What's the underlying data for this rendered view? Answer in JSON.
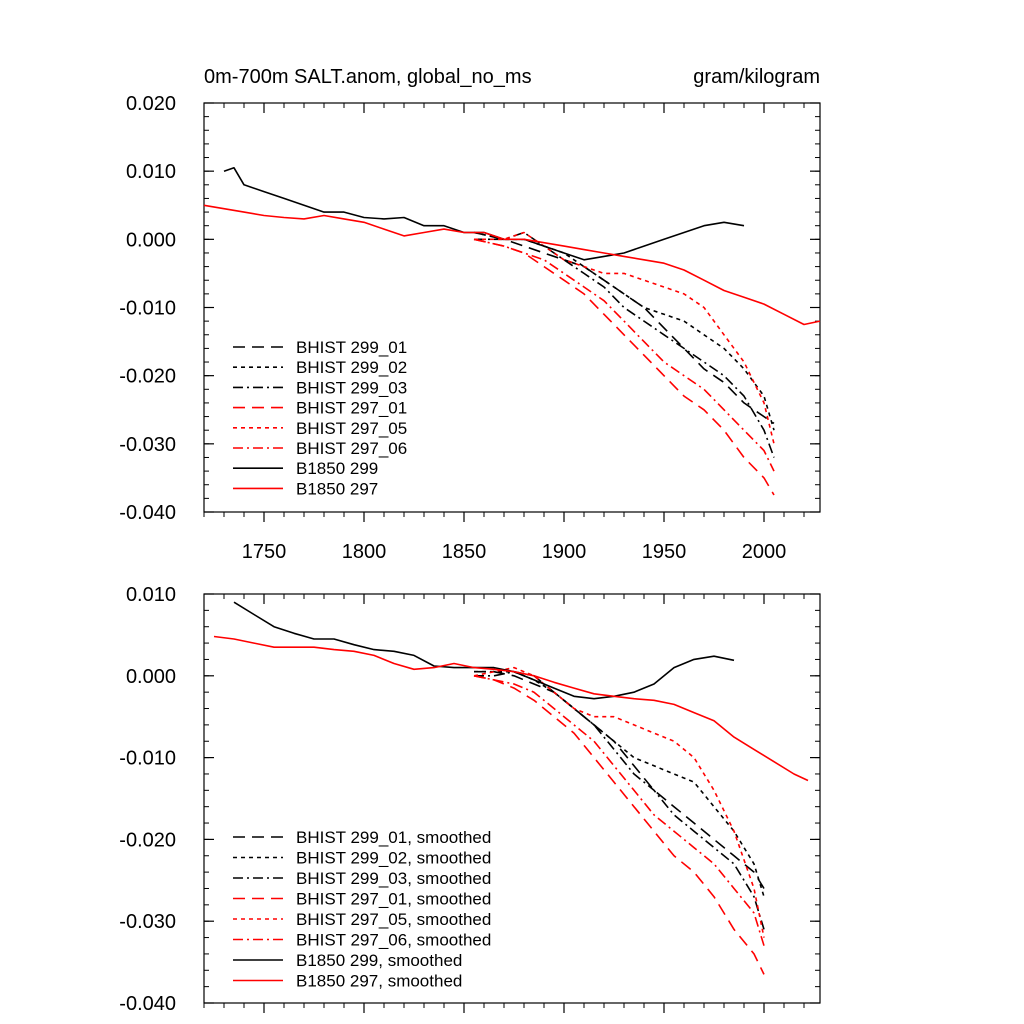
{
  "chart_data": [
    {
      "type": "line",
      "title": "0m-700m SALT.anom, global_no_ms",
      "units": "gram/kilogram",
      "xlim": [
        1720,
        2028
      ],
      "ylim": [
        -0.04,
        0.02
      ],
      "xticks": [
        1750,
        1800,
        1850,
        1900,
        1950,
        2000
      ],
      "xtick_labels": [
        "1750",
        "1800",
        "1850",
        "1900",
        "1950",
        "2000"
      ],
      "yticks": [
        0.02,
        0.01,
        0.0,
        -0.01,
        -0.02,
        -0.03,
        -0.04
      ],
      "ytick_labels": [
        "0.020",
        "0.010",
        "0.000",
        "-0.010",
        "-0.020",
        "-0.030",
        "-0.040"
      ],
      "series": [
        {
          "name": "BHIST 299_01",
          "color": "#000000",
          "dash": "long-dash",
          "x": [
            1855,
            1870,
            1880,
            1890,
            1900,
            1910,
            1920,
            1930,
            1940,
            1950,
            1960,
            1970,
            1980,
            1990,
            2000,
            2005
          ],
          "y": [
            0.001,
            0.0,
            -0.001,
            -0.002,
            -0.003,
            -0.004,
            -0.006,
            -0.008,
            -0.01,
            -0.013,
            -0.016,
            -0.019,
            -0.021,
            -0.024,
            -0.026,
            -0.027
          ]
        },
        {
          "name": "BHIST 299_02",
          "color": "#000000",
          "dash": "short-dash",
          "x": [
            1855,
            1870,
            1880,
            1890,
            1900,
            1910,
            1920,
            1930,
            1940,
            1950,
            1960,
            1970,
            1980,
            1990,
            2000,
            2005
          ],
          "y": [
            0.001,
            0.0,
            0.0,
            -0.001,
            -0.002,
            -0.004,
            -0.006,
            -0.008,
            -0.01,
            -0.011,
            -0.012,
            -0.014,
            -0.016,
            -0.019,
            -0.023,
            -0.028
          ]
        },
        {
          "name": "BHIST 299_03",
          "color": "#000000",
          "dash": "dash-dot",
          "x": [
            1855,
            1870,
            1880,
            1890,
            1900,
            1910,
            1920,
            1930,
            1940,
            1950,
            1960,
            1970,
            1980,
            1990,
            2000,
            2005
          ],
          "y": [
            0.0,
            0.0,
            0.001,
            -0.001,
            -0.003,
            -0.005,
            -0.007,
            -0.01,
            -0.012,
            -0.014,
            -0.016,
            -0.018,
            -0.02,
            -0.023,
            -0.028,
            -0.032
          ]
        },
        {
          "name": "BHIST 297_01",
          "color": "#ff0000",
          "dash": "long-dash",
          "x": [
            1855,
            1870,
            1880,
            1890,
            1900,
            1910,
            1920,
            1930,
            1940,
            1950,
            1960,
            1970,
            1980,
            1990,
            2000,
            2005
          ],
          "y": [
            0.0,
            -0.001,
            -0.002,
            -0.004,
            -0.006,
            -0.008,
            -0.011,
            -0.014,
            -0.017,
            -0.02,
            -0.023,
            -0.025,
            -0.028,
            -0.032,
            -0.035,
            -0.0375
          ]
        },
        {
          "name": "BHIST 297_05",
          "color": "#ff0000",
          "dash": "short-dash",
          "x": [
            1855,
            1870,
            1880,
            1890,
            1900,
            1910,
            1920,
            1930,
            1940,
            1950,
            1960,
            1970,
            1980,
            1990,
            2000,
            2005
          ],
          "y": [
            0.0,
            0.0,
            0.001,
            -0.001,
            -0.003,
            -0.004,
            -0.005,
            -0.005,
            -0.006,
            -0.007,
            -0.008,
            -0.01,
            -0.014,
            -0.018,
            -0.024,
            -0.03
          ]
        },
        {
          "name": "BHIST 297_06",
          "color": "#ff0000",
          "dash": "dash-dot",
          "x": [
            1855,
            1870,
            1880,
            1890,
            1900,
            1910,
            1920,
            1930,
            1940,
            1950,
            1960,
            1970,
            1980,
            1990,
            2000,
            2005
          ],
          "y": [
            0.0,
            -0.001,
            -0.002,
            -0.003,
            -0.005,
            -0.007,
            -0.009,
            -0.012,
            -0.015,
            -0.018,
            -0.02,
            -0.022,
            -0.025,
            -0.028,
            -0.031,
            -0.034
          ]
        },
        {
          "name": "B1850 299",
          "color": "#000000",
          "dash": "solid",
          "x": [
            1730,
            1735,
            1740,
            1750,
            1760,
            1770,
            1780,
            1790,
            1800,
            1810,
            1820,
            1830,
            1840,
            1850,
            1860,
            1870,
            1880,
            1890,
            1900,
            1910,
            1920,
            1930,
            1940,
            1950,
            1960,
            1970,
            1980,
            1990
          ],
          "y": [
            0.01,
            0.0105,
            0.008,
            0.007,
            0.006,
            0.005,
            0.004,
            0.004,
            0.0032,
            0.003,
            0.0032,
            0.002,
            0.002,
            0.001,
            0.001,
            0.0,
            0.0,
            -0.001,
            -0.002,
            -0.003,
            -0.0025,
            -0.002,
            -0.001,
            0.0,
            0.001,
            0.002,
            0.0025,
            0.002
          ]
        },
        {
          "name": "B1850 297",
          "color": "#ff0000",
          "dash": "solid",
          "x": [
            1720,
            1730,
            1740,
            1750,
            1760,
            1770,
            1780,
            1790,
            1800,
            1810,
            1820,
            1830,
            1840,
            1850,
            1860,
            1870,
            1880,
            1890,
            1900,
            1910,
            1920,
            1930,
            1940,
            1950,
            1960,
            1970,
            1980,
            1990,
            2000,
            2010,
            2020,
            2028
          ],
          "y": [
            0.005,
            0.0045,
            0.004,
            0.0035,
            0.0032,
            0.003,
            0.0035,
            0.003,
            0.0025,
            0.0015,
            0.0005,
            0.001,
            0.0015,
            0.001,
            0.001,
            0.0,
            0.0,
            -0.0005,
            -0.001,
            -0.0015,
            -0.002,
            -0.0025,
            -0.003,
            -0.0035,
            -0.0045,
            -0.006,
            -0.0075,
            -0.0085,
            -0.0095,
            -0.011,
            -0.0125,
            -0.012
          ]
        }
      ]
    },
    {
      "type": "line",
      "title": "",
      "xlim": [
        1720,
        2028
      ],
      "ylim": [
        -0.04,
        0.01
      ],
      "xticks": [
        1750,
        1800,
        1850,
        1900,
        1950,
        2000
      ],
      "xtick_labels": [],
      "yticks": [
        0.01,
        0.0,
        -0.01,
        -0.02,
        -0.03,
        -0.04
      ],
      "ytick_labels": [
        "0.010",
        "0.000",
        "-0.010",
        "-0.020",
        "-0.030",
        "-0.040"
      ],
      "series": [
        {
          "name": "BHIST 299_01, smoothed",
          "color": "#000000",
          "dash": "long-dash",
          "x": [
            1855,
            1865,
            1875,
            1885,
            1895,
            1905,
            1915,
            1925,
            1935,
            1945,
            1955,
            1965,
            1975,
            1985,
            1995,
            2000
          ],
          "y": [
            0.0005,
            0.0005,
            0.0,
            -0.001,
            -0.002,
            -0.004,
            -0.006,
            -0.008,
            -0.011,
            -0.014,
            -0.016,
            -0.018,
            -0.02,
            -0.022,
            -0.024,
            -0.026
          ]
        },
        {
          "name": "BHIST 299_02, smoothed",
          "color": "#000000",
          "dash": "short-dash",
          "x": [
            1855,
            1865,
            1875,
            1885,
            1895,
            1905,
            1915,
            1925,
            1935,
            1945,
            1955,
            1965,
            1975,
            1985,
            1995,
            2000
          ],
          "y": [
            0.0005,
            0.0005,
            0.0005,
            -0.0005,
            -0.002,
            -0.004,
            -0.006,
            -0.008,
            -0.01,
            -0.011,
            -0.012,
            -0.013,
            -0.016,
            -0.019,
            -0.023,
            -0.027
          ]
        },
        {
          "name": "BHIST 299_03, smoothed",
          "color": "#000000",
          "dash": "dash-dot",
          "x": [
            1855,
            1865,
            1875,
            1885,
            1895,
            1905,
            1915,
            1925,
            1935,
            1945,
            1955,
            1965,
            1975,
            1985,
            1995,
            2000
          ],
          "y": [
            0.0,
            0.0,
            0.0005,
            0.0,
            -0.002,
            -0.004,
            -0.006,
            -0.009,
            -0.012,
            -0.014,
            -0.017,
            -0.019,
            -0.021,
            -0.023,
            -0.027,
            -0.031
          ]
        },
        {
          "name": "BHIST 297_01, smoothed",
          "color": "#ff0000",
          "dash": "long-dash",
          "x": [
            1855,
            1865,
            1875,
            1885,
            1895,
            1905,
            1915,
            1925,
            1935,
            1945,
            1955,
            1965,
            1975,
            1985,
            1995,
            2000
          ],
          "y": [
            0.0,
            -0.0005,
            -0.0015,
            -0.003,
            -0.005,
            -0.007,
            -0.01,
            -0.013,
            -0.016,
            -0.019,
            -0.022,
            -0.024,
            -0.027,
            -0.031,
            -0.034,
            -0.0365
          ]
        },
        {
          "name": "BHIST 297_05, smoothed",
          "color": "#ff0000",
          "dash": "short-dash",
          "x": [
            1855,
            1865,
            1875,
            1885,
            1895,
            1905,
            1915,
            1925,
            1935,
            1945,
            1955,
            1965,
            1975,
            1985,
            1995,
            2000
          ],
          "y": [
            0.0,
            0.0005,
            0.001,
            0.0,
            -0.002,
            -0.004,
            -0.005,
            -0.005,
            -0.006,
            -0.007,
            -0.008,
            -0.01,
            -0.014,
            -0.019,
            -0.026,
            -0.032
          ]
        },
        {
          "name": "BHIST 297_06, smoothed",
          "color": "#ff0000",
          "dash": "dash-dot",
          "x": [
            1855,
            1865,
            1875,
            1885,
            1895,
            1905,
            1915,
            1925,
            1935,
            1945,
            1955,
            1965,
            1975,
            1985,
            1995,
            2000
          ],
          "y": [
            0.0,
            -0.0005,
            -0.001,
            -0.002,
            -0.004,
            -0.006,
            -0.008,
            -0.011,
            -0.014,
            -0.017,
            -0.019,
            -0.021,
            -0.023,
            -0.026,
            -0.029,
            -0.033
          ]
        },
        {
          "name": "B1850 299, smoothed",
          "color": "#000000",
          "dash": "solid",
          "x": [
            1735,
            1745,
            1755,
            1765,
            1775,
            1785,
            1795,
            1805,
            1815,
            1825,
            1835,
            1845,
            1855,
            1865,
            1875,
            1885,
            1895,
            1905,
            1915,
            1925,
            1935,
            1945,
            1955,
            1965,
            1975,
            1985
          ],
          "y": [
            0.009,
            0.0075,
            0.006,
            0.0052,
            0.0045,
            0.0045,
            0.0038,
            0.0032,
            0.003,
            0.0025,
            0.0012,
            0.001,
            0.001,
            0.001,
            0.0005,
            -0.0005,
            -0.0015,
            -0.0025,
            -0.0028,
            -0.0025,
            -0.002,
            -0.001,
            0.001,
            0.002,
            0.0024,
            0.0019
          ]
        },
        {
          "name": "B1850 297, smoothed",
          "color": "#ff0000",
          "dash": "solid",
          "x": [
            1725,
            1735,
            1745,
            1755,
            1765,
            1775,
            1785,
            1795,
            1805,
            1815,
            1825,
            1835,
            1845,
            1855,
            1865,
            1875,
            1885,
            1895,
            1905,
            1915,
            1925,
            1935,
            1945,
            1955,
            1965,
            1975,
            1985,
            1995,
            2005,
            2015,
            2022
          ],
          "y": [
            0.0048,
            0.0045,
            0.004,
            0.0035,
            0.0035,
            0.0035,
            0.0032,
            0.003,
            0.0025,
            0.0015,
            0.0008,
            0.001,
            0.0015,
            0.001,
            0.0008,
            0.0005,
            0.0,
            -0.0008,
            -0.0015,
            -0.0022,
            -0.0025,
            -0.0028,
            -0.003,
            -0.0035,
            -0.0045,
            -0.0055,
            -0.0075,
            -0.009,
            -0.0105,
            -0.012,
            -0.0128
          ]
        }
      ]
    }
  ]
}
